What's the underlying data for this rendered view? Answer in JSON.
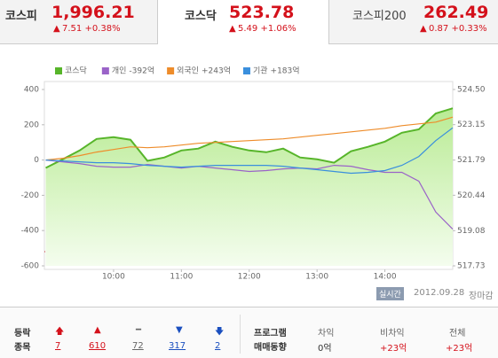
{
  "tabs": [
    {
      "name": "코스피",
      "value": "1,996.21",
      "change": "7.51 +0.38%"
    },
    {
      "name": "코스닥",
      "value": "523.78",
      "change": "5.49 +1.06%"
    },
    {
      "name": "코스피200",
      "value": "262.49",
      "change": "0.87 +0.33%"
    }
  ],
  "chart_data": {
    "type": "line",
    "categories": [
      null,
      null,
      null,
      null,
      "10:00",
      null,
      null,
      null,
      "11:00",
      null,
      null,
      null,
      "12:00",
      null,
      null,
      null,
      "13:00",
      null,
      null,
      null,
      "14:00",
      null,
      null,
      null,
      null
    ],
    "ylim": [
      -600,
      400
    ],
    "yticks": [
      400,
      200,
      0,
      -200,
      -400,
      -600
    ],
    "y2lim": [
      517.73,
      524.5
    ],
    "y2ticks": [
      {
        "value": 524.5,
        "label": "524.50"
      },
      523.15,
      521.79,
      520.44,
      519.08,
      517.73
    ],
    "grid": false,
    "series": [
      {
        "name": "코스닥",
        "color": "#57b52a",
        "axis": "y2",
        "area": true,
        "values": [
          521.49,
          521.82,
          522.16,
          522.6,
          522.67,
          522.57,
          521.76,
          521.89,
          522.16,
          522.23,
          522.5,
          522.3,
          522.16,
          522.09,
          522.23,
          521.89,
          521.82,
          521.69,
          522.13,
          522.3,
          522.5,
          522.84,
          522.97,
          523.58,
          523.78
        ]
      },
      {
        "name": "개인",
        "color": "#9a63c8",
        "legend_value": "-392억",
        "values": [
          0,
          -10,
          -20,
          -35,
          -40,
          -40,
          -25,
          -35,
          -45,
          -35,
          -45,
          -55,
          -65,
          -60,
          -50,
          -45,
          -50,
          -30,
          -35,
          -55,
          -70,
          -70,
          -120,
          -295,
          -392
        ]
      },
      {
        "name": "외국인",
        "color": "#ee8c2a",
        "legend_value": "+243억",
        "values": [
          0,
          10,
          25,
          45,
          60,
          75,
          70,
          75,
          85,
          95,
          100,
          105,
          110,
          115,
          120,
          130,
          140,
          150,
          160,
          170,
          180,
          195,
          205,
          215,
          243
        ]
      },
      {
        "name": "기관",
        "color": "#3a8fdd",
        "legend_value": "+183억",
        "values": [
          0,
          -5,
          -10,
          -15,
          -15,
          -20,
          -30,
          -35,
          -40,
          -35,
          -30,
          -30,
          -30,
          -30,
          -35,
          -45,
          -55,
          -65,
          -75,
          -70,
          -60,
          -30,
          20,
          110,
          183
        ]
      }
    ]
  },
  "status": {
    "badge": "실시간",
    "date": "2012.09.28",
    "state": "장마감"
  },
  "breadth": {
    "label": [
      "등락",
      "종목"
    ],
    "counts": [
      "7",
      "610",
      "72",
      "317",
      "2"
    ]
  },
  "program": {
    "label": [
      "프로그램",
      "매매동향"
    ],
    "columns": [
      {
        "head": "차익",
        "value": "0억"
      },
      {
        "head": "비차익",
        "value": "+23억"
      },
      {
        "head": "전체",
        "value": "+23억"
      }
    ]
  }
}
